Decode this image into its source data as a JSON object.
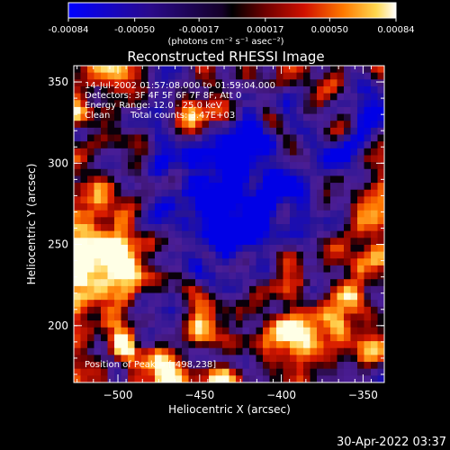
{
  "colorbar": {
    "tick_labels": [
      "-0.00084",
      "-0.00050",
      "-0.00017",
      "0.00017",
      "0.00050",
      "0.00084"
    ],
    "units_label": "(photons cm⁻² s⁻¹ asec⁻²)",
    "min": -0.00084,
    "max": 0.00084
  },
  "plot": {
    "title": "Reconstructed RHESSI Image",
    "xlabel": "Heliocentric X (arcsec)",
    "ylabel": "Heliocentric Y (arcsec)",
    "xlim": [
      -527,
      -337
    ],
    "ylim": [
      165,
      360
    ],
    "x_ticks": [
      -500,
      -450,
      -400,
      -350
    ],
    "y_ticks": [
      200,
      250,
      300,
      350
    ],
    "x_tick_labels": [
      "−500",
      "−450",
      "−400",
      "−350"
    ],
    "y_tick_labels": [
      "200",
      "250",
      "300",
      "350"
    ]
  },
  "info": {
    "time_range": "14-Jul-2002 01:57:08.000 to 01:59:04.000",
    "detectors": "Detectors: 3F 4F 5F 6F 7F 8F, Att 0",
    "energy_range": "Energy Range: 12.0 - 25.0 keV",
    "method": "Clean",
    "total_counts": "Total counts: 3.47E+03",
    "peak_position": "Position of Peak = [-498,238]"
  },
  "footer": {
    "timestamp": "30-Apr-2022 03:37"
  }
}
